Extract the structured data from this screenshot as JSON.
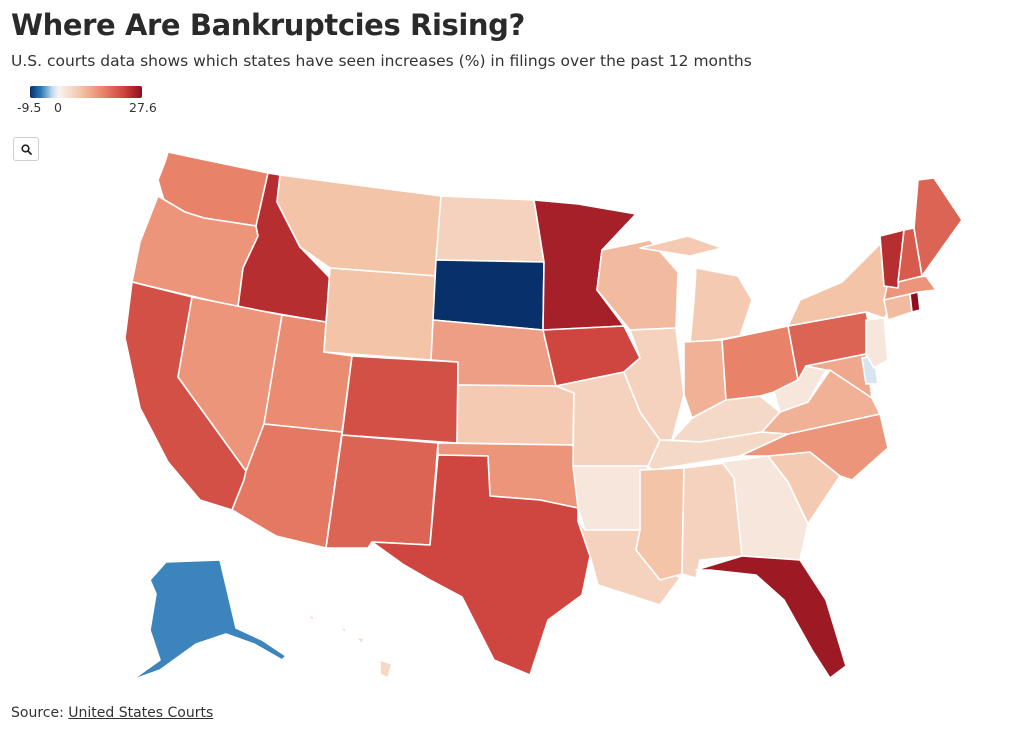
{
  "header": {
    "title": "Where Are Bankruptcies Rising?",
    "subtitle": "U.S. courts data shows which states have seen increases (%) in filings over the past 12 months"
  },
  "legend": {
    "min_label": "-9.5",
    "zero_label": "0",
    "max_label": "27.6",
    "min": -9.5,
    "max": 27.6,
    "colors": [
      "#08306b",
      "#2c7bb6",
      "#c6dbef",
      "#f7f4f0",
      "#f4c5a9",
      "#e9846a",
      "#cb3f3a",
      "#8f0d1e"
    ]
  },
  "controls": {
    "search_icon": "search-icon"
  },
  "footer": {
    "source_prefix": "Source:",
    "source_link": "United States Courts"
  },
  "map_data": {
    "type": "choropleth",
    "unit": "%",
    "states": [
      {
        "name": "WA",
        "value": 14
      },
      {
        "name": "OR",
        "value": 12
      },
      {
        "name": "CA",
        "value": 19
      },
      {
        "name": "ID",
        "value": 23
      },
      {
        "name": "NV",
        "value": 12
      },
      {
        "name": "UT",
        "value": 13
      },
      {
        "name": "AZ",
        "value": 15
      },
      {
        "name": "MT",
        "value": 7
      },
      {
        "name": "WY",
        "value": 7
      },
      {
        "name": "CO",
        "value": 19
      },
      {
        "name": "NM",
        "value": 17
      },
      {
        "name": "ND",
        "value": 5
      },
      {
        "name": "SD",
        "value": -9.5
      },
      {
        "name": "NE",
        "value": 11
      },
      {
        "name": "KS",
        "value": 6
      },
      {
        "name": "OK",
        "value": 12
      },
      {
        "name": "TX",
        "value": 20
      },
      {
        "name": "MN",
        "value": 25
      },
      {
        "name": "IA",
        "value": 20
      },
      {
        "name": "MO",
        "value": 5
      },
      {
        "name": "AR",
        "value": 2
      },
      {
        "name": "LA",
        "value": 5
      },
      {
        "name": "WI",
        "value": 8
      },
      {
        "name": "IL",
        "value": 5
      },
      {
        "name": "MI",
        "value": 6
      },
      {
        "name": "IN",
        "value": 9
      },
      {
        "name": "OH",
        "value": 14
      },
      {
        "name": "KY",
        "value": 4
      },
      {
        "name": "TN",
        "value": 4
      },
      {
        "name": "MS",
        "value": 7
      },
      {
        "name": "AL",
        "value": 5
      },
      {
        "name": "GA",
        "value": 2
      },
      {
        "name": "FL",
        "value": 26
      },
      {
        "name": "SC",
        "value": 6
      },
      {
        "name": "NC",
        "value": 12
      },
      {
        "name": "VA",
        "value": 9
      },
      {
        "name": "WV",
        "value": 2
      },
      {
        "name": "PA",
        "value": 17
      },
      {
        "name": "MD",
        "value": 10
      },
      {
        "name": "DE",
        "value": -2
      },
      {
        "name": "NJ",
        "value": 2
      },
      {
        "name": "NY",
        "value": 7
      },
      {
        "name": "CT",
        "value": 8
      },
      {
        "name": "RI",
        "value": 27.6
      },
      {
        "name": "MA",
        "value": 12
      },
      {
        "name": "VT",
        "value": 23
      },
      {
        "name": "NH",
        "value": 18
      },
      {
        "name": "ME",
        "value": 17
      },
      {
        "name": "AK",
        "value": -6
      },
      {
        "name": "HI",
        "value": 4
      }
    ]
  }
}
